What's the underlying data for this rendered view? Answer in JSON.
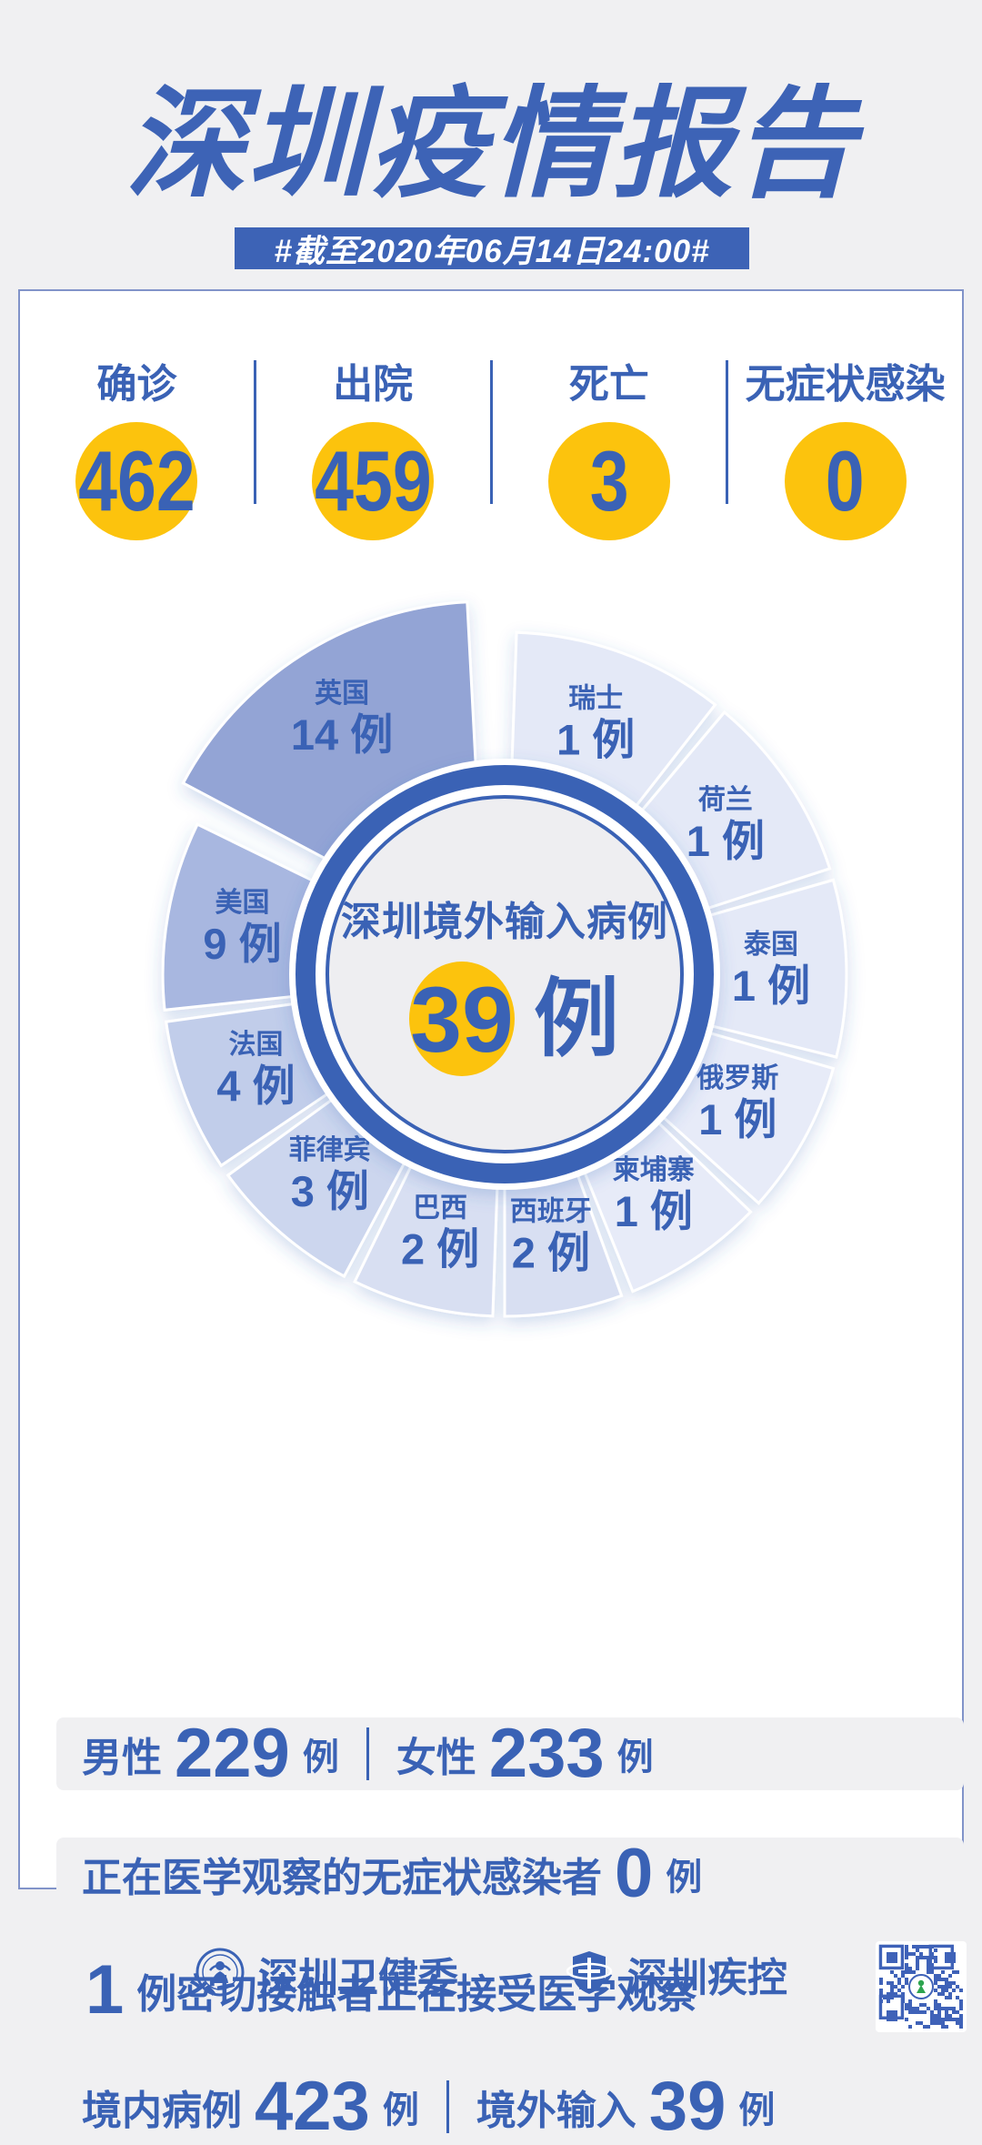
{
  "page": {
    "background": "#f0f0f2",
    "accent_blue": "#3a62b5",
    "accent_yellow": "#fcc30d",
    "card_border": "#8193c9"
  },
  "header": {
    "title": "深圳疫情报告",
    "date_banner": "#截至2020年06月14日24:00#"
  },
  "stats": {
    "items": [
      {
        "label": "确诊",
        "value": "462"
      },
      {
        "label": "出院",
        "value": "459"
      },
      {
        "label": "死亡",
        "value": "3"
      },
      {
        "label": "无症状感染",
        "value": "0"
      }
    ]
  },
  "chart_data": {
    "type": "pie",
    "title": "深圳境外输入病例",
    "total_value": "39",
    "total_unit": "例",
    "unit": "例",
    "legend_position": "on-slice",
    "series": [
      {
        "name": "瑞士",
        "value": 1,
        "color": "#e4e9f7",
        "start": 2,
        "end": 38
      },
      {
        "name": "荷兰",
        "value": 1,
        "color": "#e4e9f7",
        "start": 40,
        "end": 72
      },
      {
        "name": "泰国",
        "value": 1,
        "color": "#e4e9f7",
        "start": 74,
        "end": 104
      },
      {
        "name": "俄罗斯",
        "value": 1,
        "color": "#e7ebf8",
        "start": 106,
        "end": 132
      },
      {
        "name": "柬埔寨",
        "value": 1,
        "color": "#e7ebf8",
        "start": 134,
        "end": 158
      },
      {
        "name": "西班牙",
        "value": 2,
        "color": "#d8dff2",
        "start": 160,
        "end": 180
      },
      {
        "name": "巴西",
        "value": 2,
        "color": "#d8dff2",
        "start": 182,
        "end": 206
      },
      {
        "name": "菲律宾",
        "value": 3,
        "color": "#ccd6ee",
        "start": 208,
        "end": 234
      },
      {
        "name": "法国",
        "value": 4,
        "color": "#c1cdea",
        "start": 236,
        "end": 262
      },
      {
        "name": "美国",
        "value": 9,
        "color": "#a8b7e0",
        "start": 264,
        "end": 296
      },
      {
        "name": "英国",
        "value": 14,
        "color": "#93a4d5",
        "start": 298,
        "end": 357,
        "exploded": true
      }
    ]
  },
  "details": {
    "gender": {
      "male_label": "男性",
      "male_value": "229",
      "female_label": "女性",
      "female_value": "233",
      "unit": "例"
    },
    "asymptomatic": {
      "label": "正在医学观察的无症状感染者",
      "value": "0",
      "unit": "例"
    },
    "close_contacts": {
      "value": "1",
      "label": "例密切接触者正在接受医学观察"
    },
    "origin": {
      "domestic_label": "境内病例",
      "domestic_value": "423",
      "imported_label": "境外输入",
      "imported_value": "39",
      "unit": "例"
    }
  },
  "footer": {
    "org1": "深圳卫健委",
    "org2": "深圳疾控",
    "qr_label": "qr-code"
  }
}
